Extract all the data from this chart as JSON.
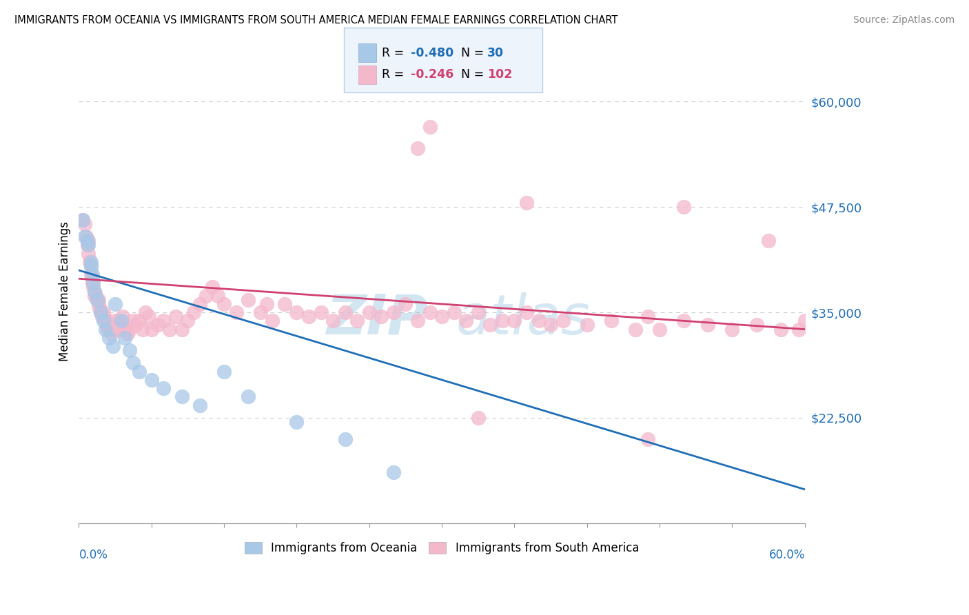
{
  "title": "IMMIGRANTS FROM OCEANIA VS IMMIGRANTS FROM SOUTH AMERICA MEDIAN FEMALE EARNINGS CORRELATION CHART",
  "source": "Source: ZipAtlas.com",
  "ylabel": "Median Female Earnings",
  "x_min": 0.0,
  "x_max": 0.6,
  "y_min": 10000,
  "y_max": 65000,
  "y_ticks": [
    22500,
    35000,
    47500,
    60000
  ],
  "y_tick_labels": [
    "$22,500",
    "$35,000",
    "$47,500",
    "$60,000"
  ],
  "oceania_color": "#a8c8e8",
  "sa_color": "#f4b8cb",
  "oceania_line_color": "#1f6eb5",
  "sa_line_color": "#d04070",
  "legend_box_color": "#ddeeff",
  "legend_border_color": "#aaccee",
  "grid_color": "#cccccc",
  "background": "#ffffff",
  "watermark_color": "#b0d4f0",
  "oceania_x": [
    0.003,
    0.005,
    0.007,
    0.008,
    0.01,
    0.01,
    0.011,
    0.012,
    0.013,
    0.015,
    0.018,
    0.02,
    0.022,
    0.025,
    0.028,
    0.03,
    0.035,
    0.038,
    0.042,
    0.045,
    0.05,
    0.06,
    0.07,
    0.085,
    0.1,
    0.12,
    0.14,
    0.18,
    0.22,
    0.26
  ],
  "oceania_y": [
    46000,
    44000,
    43500,
    43000,
    41000,
    40500,
    39500,
    38500,
    37500,
    36500,
    35000,
    34000,
    33000,
    32000,
    31000,
    36000,
    34000,
    32000,
    30500,
    29000,
    28000,
    27000,
    26000,
    25000,
    24000,
    28000,
    25000,
    22000,
    20000,
    16000
  ],
  "sa_x": [
    0.003,
    0.005,
    0.006,
    0.007,
    0.008,
    0.008,
    0.009,
    0.01,
    0.01,
    0.011,
    0.011,
    0.012,
    0.013,
    0.013,
    0.014,
    0.015,
    0.016,
    0.016,
    0.017,
    0.018,
    0.019,
    0.02,
    0.021,
    0.022,
    0.023,
    0.024,
    0.025,
    0.026,
    0.027,
    0.028,
    0.029,
    0.03,
    0.032,
    0.033,
    0.035,
    0.036,
    0.038,
    0.04,
    0.042,
    0.045,
    0.047,
    0.05,
    0.053,
    0.055,
    0.058,
    0.06,
    0.065,
    0.07,
    0.075,
    0.08,
    0.085,
    0.09,
    0.095,
    0.1,
    0.105,
    0.11,
    0.115,
    0.12,
    0.13,
    0.14,
    0.15,
    0.155,
    0.16,
    0.17,
    0.18,
    0.19,
    0.2,
    0.21,
    0.22,
    0.23,
    0.24,
    0.25,
    0.26,
    0.27,
    0.28,
    0.29,
    0.3,
    0.31,
    0.32,
    0.33,
    0.34,
    0.35,
    0.36,
    0.37,
    0.38,
    0.39,
    0.4,
    0.42,
    0.44,
    0.46,
    0.47,
    0.48,
    0.5,
    0.52,
    0.54,
    0.56,
    0.58,
    0.595,
    0.6,
    0.61,
    0.33,
    0.47
  ],
  "sa_y": [
    46000,
    45500,
    44000,
    43000,
    43500,
    42000,
    41000,
    40500,
    39500,
    39000,
    38500,
    38000,
    37500,
    37000,
    37000,
    36500,
    36000,
    36500,
    35500,
    35000,
    34500,
    35000,
    34500,
    34000,
    33500,
    33000,
    33500,
    33000,
    32500,
    33000,
    33500,
    34000,
    33000,
    34000,
    33500,
    34500,
    33000,
    32500,
    33000,
    34000,
    33500,
    34000,
    33000,
    35000,
    34500,
    33000,
    33500,
    34000,
    33000,
    34500,
    33000,
    34000,
    35000,
    36000,
    37000,
    38000,
    37000,
    36000,
    35000,
    36500,
    35000,
    36000,
    34000,
    36000,
    35000,
    34500,
    35000,
    34000,
    35000,
    34000,
    35000,
    34500,
    35000,
    36000,
    34000,
    35000,
    34500,
    35000,
    34000,
    35000,
    33500,
    34000,
    34000,
    35000,
    34000,
    33500,
    34000,
    33500,
    34000,
    33000,
    34500,
    33000,
    34000,
    33500,
    33000,
    33500,
    33000,
    33000,
    34000,
    33000,
    22500,
    20000
  ]
}
